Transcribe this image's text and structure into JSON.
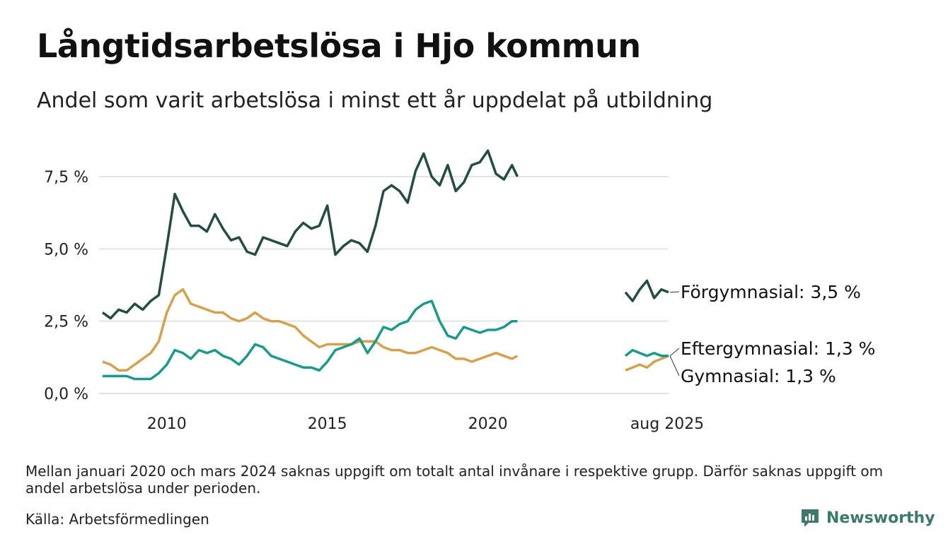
{
  "title": "Långtidsarbetslösa i Hjo kommun",
  "subtitle": "Andel som varit arbetslösa i minst ett år uppdelat på utbildning",
  "note": "Mellan januari 2020 och mars 2024 saknas uppgift om totalt antal invånare i respektive grupp. Därför saknas uppgift om andel arbetslösa under perioden.",
  "source": "Källa: Arbetsförmedlingen",
  "brand": "Newsworthy",
  "colors": {
    "forgymnasial": "#234d44",
    "eftergymnasial": "#1a9a89",
    "gymnasial": "#d4a24c",
    "grid": "#e3e3e3",
    "brand": "#3d7a6b"
  },
  "chart_data": {
    "type": "line",
    "y_ticks": [
      0,
      2.5,
      5,
      7.5
    ],
    "y_tick_labels": [
      "0,0 %",
      "2,5 %",
      "5,0 %",
      "7,5 %"
    ],
    "x_ticks": [
      2010,
      2015,
      2020
    ],
    "x_tick_labels": [
      "2010",
      "2015",
      "2020"
    ],
    "ylim": [
      0,
      8.6
    ],
    "xlim": [
      2008.0,
      2021.0
    ],
    "recent_period_label": "aug 2025",
    "series": [
      {
        "key": "forgymnasial",
        "name": "Förgymnasial",
        "end_label": "Förgymnasial: 3,5 %",
        "x": [
          2008.0,
          2008.25,
          2008.5,
          2008.75,
          2009.0,
          2009.25,
          2009.5,
          2009.75,
          2010.0,
          2010.25,
          2010.5,
          2010.75,
          2011.0,
          2011.25,
          2011.5,
          2011.75,
          2012.0,
          2012.25,
          2012.5,
          2012.75,
          2013.0,
          2013.25,
          2013.5,
          2013.75,
          2014.0,
          2014.25,
          2014.5,
          2014.75,
          2015.0,
          2015.25,
          2015.5,
          2015.75,
          2016.0,
          2016.25,
          2016.5,
          2016.75,
          2017.0,
          2017.25,
          2017.5,
          2017.75,
          2018.0,
          2018.25,
          2018.5,
          2018.75,
          2019.0,
          2019.25,
          2019.5,
          2019.75,
          2020.0,
          2020.25,
          2020.5,
          2020.75,
          2020.92
        ],
        "y": [
          2.8,
          2.6,
          2.9,
          2.8,
          3.1,
          2.9,
          3.2,
          3.4,
          5.1,
          6.9,
          6.3,
          5.8,
          5.8,
          5.6,
          6.2,
          5.7,
          5.3,
          5.4,
          4.9,
          4.8,
          5.4,
          5.3,
          5.2,
          5.1,
          5.6,
          5.9,
          5.7,
          5.8,
          6.5,
          4.8,
          5.1,
          5.3,
          5.2,
          4.9,
          5.8,
          7.0,
          7.2,
          7.0,
          6.6,
          7.7,
          8.3,
          7.5,
          7.2,
          7.9,
          7.0,
          7.3,
          7.9,
          8.0,
          8.4,
          7.6,
          7.4,
          7.9,
          7.5
        ],
        "recent_y": [
          3.5,
          3.2,
          3.6,
          3.9,
          3.3,
          3.6,
          3.5
        ]
      },
      {
        "key": "eftergymnasial",
        "name": "Eftergymnasial",
        "end_label": "Eftergymnasial: 1,3 %",
        "x": [
          2008.0,
          2008.25,
          2008.5,
          2008.75,
          2009.0,
          2009.25,
          2009.5,
          2009.75,
          2010.0,
          2010.25,
          2010.5,
          2010.75,
          2011.0,
          2011.25,
          2011.5,
          2011.75,
          2012.0,
          2012.25,
          2012.5,
          2012.75,
          2013.0,
          2013.25,
          2013.5,
          2013.75,
          2014.0,
          2014.25,
          2014.5,
          2014.75,
          2015.0,
          2015.25,
          2015.5,
          2015.75,
          2016.0,
          2016.25,
          2016.5,
          2016.75,
          2017.0,
          2017.25,
          2017.5,
          2017.75,
          2018.0,
          2018.25,
          2018.5,
          2018.75,
          2019.0,
          2019.25,
          2019.5,
          2019.75,
          2020.0,
          2020.25,
          2020.5,
          2020.75,
          2020.92
        ],
        "y": [
          0.6,
          0.6,
          0.6,
          0.6,
          0.5,
          0.5,
          0.5,
          0.7,
          1.0,
          1.5,
          1.4,
          1.2,
          1.5,
          1.4,
          1.5,
          1.3,
          1.2,
          1.0,
          1.3,
          1.7,
          1.6,
          1.3,
          1.2,
          1.1,
          1.0,
          0.9,
          0.9,
          0.8,
          1.1,
          1.5,
          1.6,
          1.7,
          1.9,
          1.4,
          1.8,
          2.3,
          2.2,
          2.4,
          2.5,
          2.9,
          3.1,
          3.2,
          2.5,
          2.0,
          1.9,
          2.3,
          2.2,
          2.1,
          2.2,
          2.2,
          2.3,
          2.5,
          2.5
        ],
        "recent_y": [
          1.3,
          1.5,
          1.4,
          1.3,
          1.4,
          1.3,
          1.3
        ]
      },
      {
        "key": "gymnasial",
        "name": "Gymnasial",
        "end_label": "Gymnasial: 1,3 %",
        "x": [
          2008.0,
          2008.25,
          2008.5,
          2008.75,
          2009.0,
          2009.25,
          2009.5,
          2009.75,
          2010.0,
          2010.25,
          2010.5,
          2010.75,
          2011.0,
          2011.25,
          2011.5,
          2011.75,
          2012.0,
          2012.25,
          2012.5,
          2012.75,
          2013.0,
          2013.25,
          2013.5,
          2013.75,
          2014.0,
          2014.25,
          2014.5,
          2014.75,
          2015.0,
          2015.25,
          2015.5,
          2015.75,
          2016.0,
          2016.25,
          2016.5,
          2016.75,
          2017.0,
          2017.25,
          2017.5,
          2017.75,
          2018.0,
          2018.25,
          2018.5,
          2018.75,
          2019.0,
          2019.25,
          2019.5,
          2019.75,
          2020.0,
          2020.25,
          2020.5,
          2020.75,
          2020.92
        ],
        "y": [
          1.1,
          1.0,
          0.8,
          0.8,
          1.0,
          1.2,
          1.4,
          1.8,
          2.8,
          3.4,
          3.6,
          3.1,
          3.0,
          2.9,
          2.8,
          2.8,
          2.6,
          2.5,
          2.6,
          2.8,
          2.6,
          2.5,
          2.5,
          2.4,
          2.3,
          2.0,
          1.8,
          1.6,
          1.7,
          1.7,
          1.7,
          1.7,
          1.8,
          1.8,
          1.8,
          1.6,
          1.5,
          1.5,
          1.4,
          1.4,
          1.5,
          1.6,
          1.5,
          1.4,
          1.2,
          1.2,
          1.1,
          1.2,
          1.3,
          1.4,
          1.3,
          1.2,
          1.3
        ],
        "recent_y": [
          0.8,
          0.9,
          1.0,
          0.9,
          1.1,
          1.2,
          1.3
        ]
      }
    ]
  }
}
